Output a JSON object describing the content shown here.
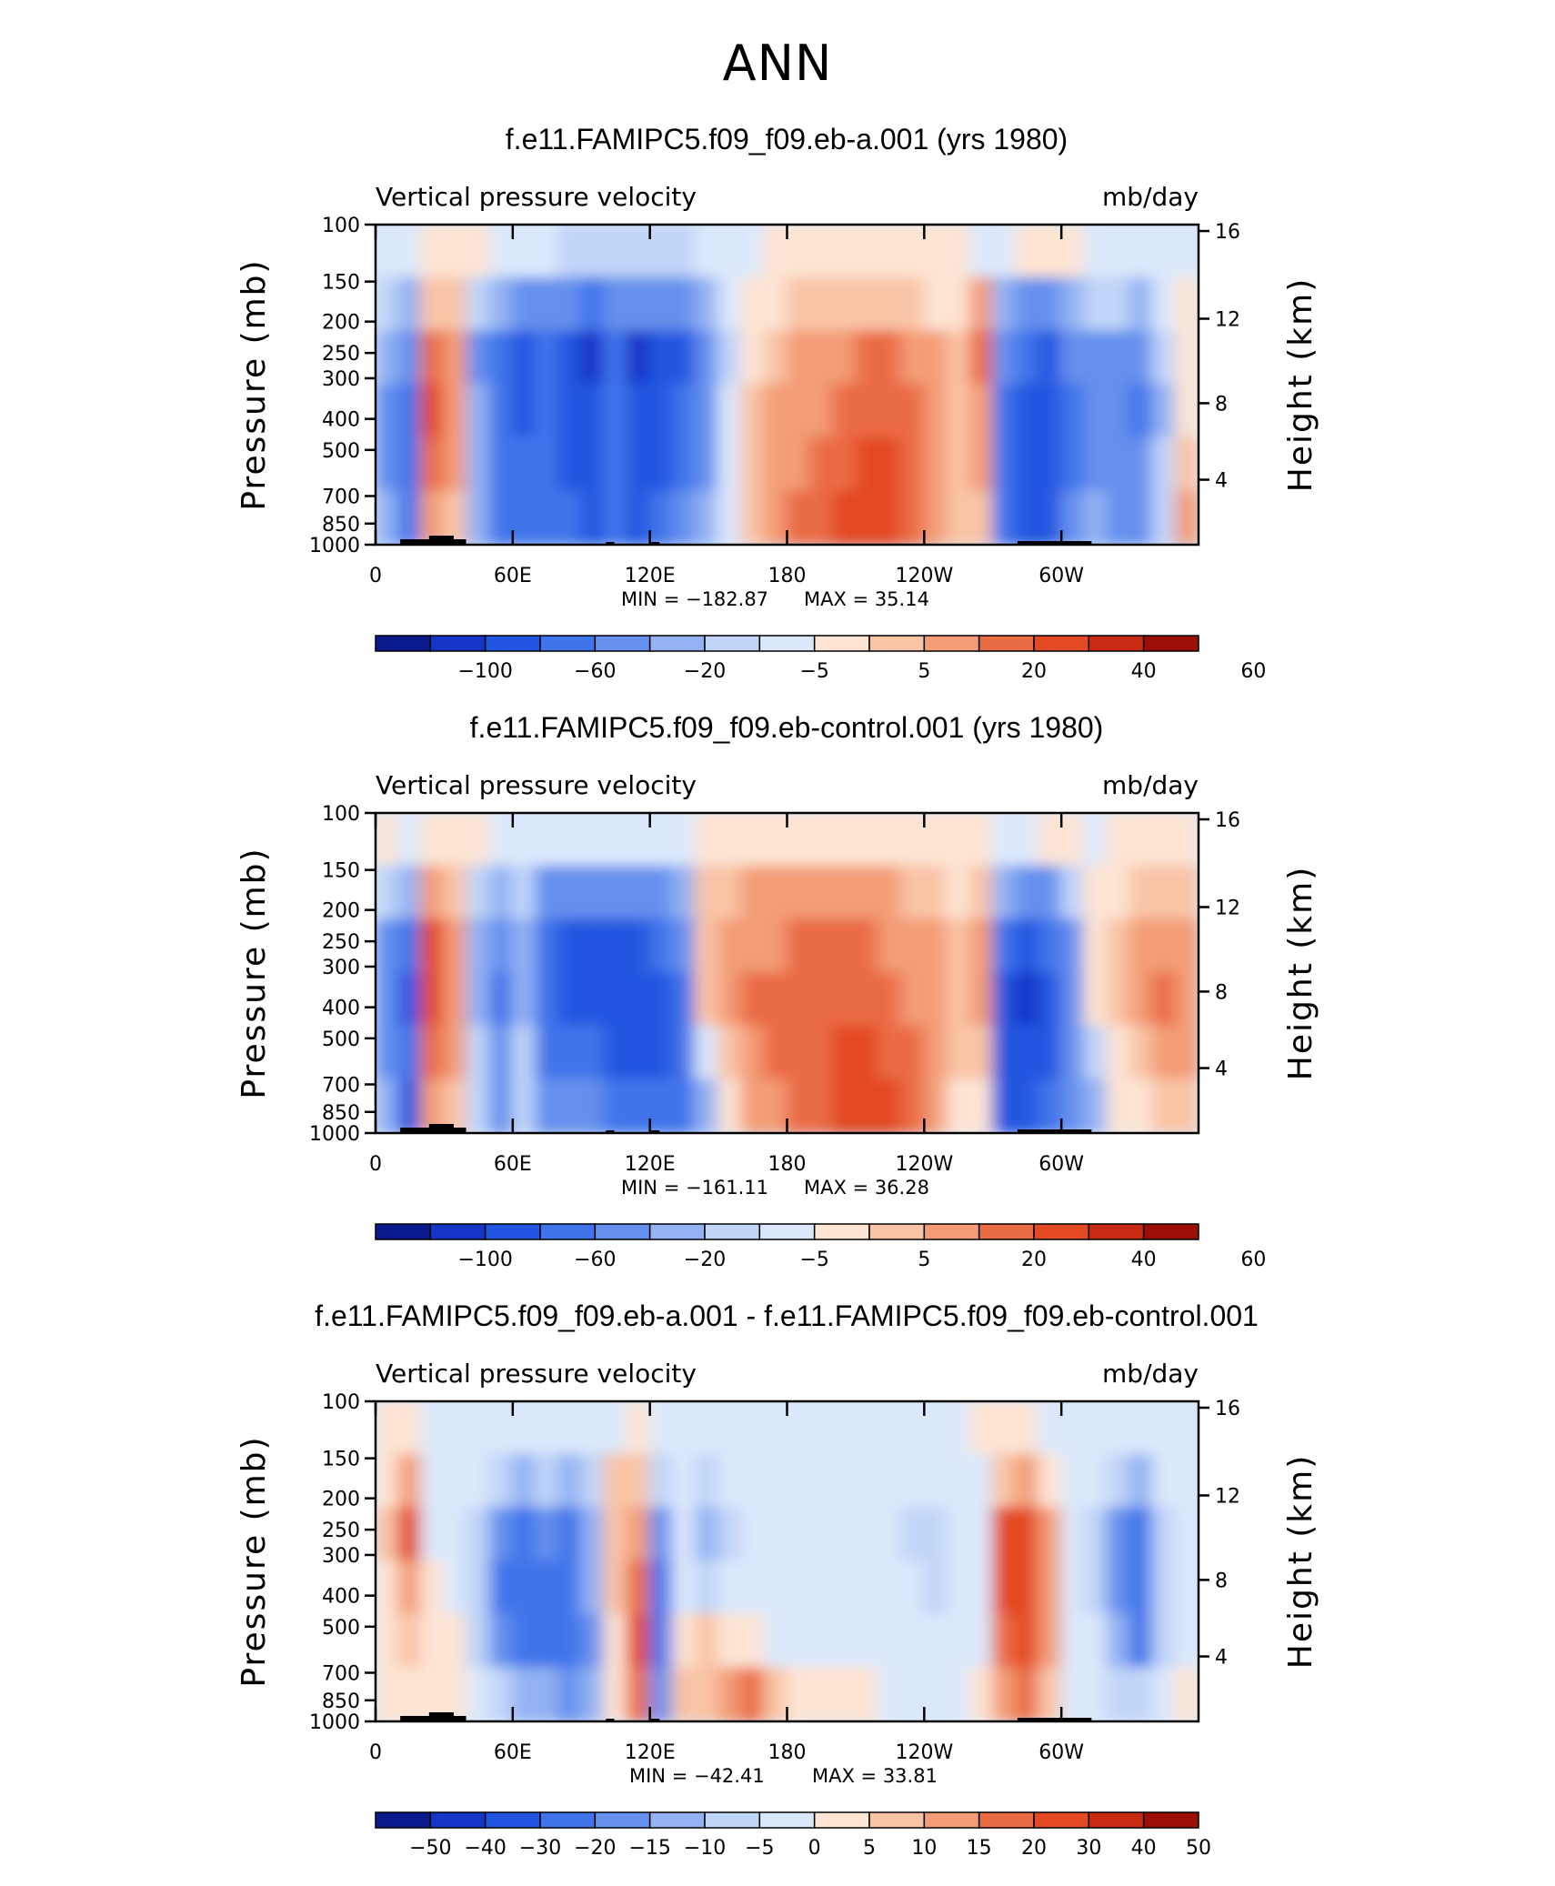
{
  "title": "ANN",
  "chart_data": [
    {
      "type": "heatmap",
      "title": "f.e11.FAMIPC5.f09_f09.eb-a.001 (yrs 1980)",
      "variable": "Vertical pressure velocity",
      "units": "mb/day",
      "ylabel": "Pressure (mb)",
      "ylabel_right": "Height (km)",
      "xticks": [
        "0",
        "60E",
        "120E",
        "180",
        "120W",
        "60W"
      ],
      "yticks": [
        "100",
        "150",
        "200",
        "250",
        "300",
        "400",
        "500",
        "700",
        "850",
        "1000"
      ],
      "yticks_right": [
        "16",
        "12",
        "8",
        "4"
      ],
      "min_label": "MIN =  −182.87",
      "max_label": "MAX =   35.14",
      "min": -182.87,
      "max": 35.14,
      "colorbar_labels": [
        "−100",
        "−60",
        "−20",
        "−5",
        "5",
        "20",
        "40",
        "60"
      ],
      "field": [
        [
          -2,
          -2,
          3,
          2,
          2,
          -4,
          -4,
          -4,
          -8,
          -6,
          -10,
          -10,
          -8,
          -8,
          -4,
          -2,
          -1,
          1,
          2,
          2,
          2,
          2,
          2,
          2,
          2,
          2,
          -1,
          -1,
          1,
          2,
          2,
          -1,
          -1,
          -1,
          -2,
          -1
        ],
        [
          -8,
          -15,
          8,
          6,
          -10,
          -20,
          -35,
          -30,
          -40,
          -45,
          -30,
          -40,
          -35,
          -30,
          -15,
          -3,
          2,
          4,
          6,
          8,
          8,
          8,
          8,
          6,
          4,
          3,
          10,
          -15,
          -25,
          -30,
          -15,
          -10,
          -10,
          -20,
          -5,
          2
        ],
        [
          -20,
          -40,
          25,
          15,
          -25,
          -60,
          -70,
          -60,
          -75,
          -85,
          -60,
          -85,
          -80,
          -65,
          -30,
          -6,
          4,
          8,
          12,
          15,
          18,
          20,
          20,
          15,
          10,
          6,
          20,
          -40,
          -60,
          -70,
          -40,
          -25,
          -30,
          -40,
          -10,
          3
        ],
        [
          -30,
          -60,
          30,
          18,
          -20,
          -55,
          -65,
          -55,
          -70,
          -80,
          -60,
          -80,
          -75,
          -60,
          -28,
          -5,
          5,
          10,
          14,
          18,
          22,
          25,
          25,
          20,
          14,
          6,
          15,
          -50,
          -70,
          -80,
          -50,
          -30,
          -40,
          -50,
          -15,
          4
        ],
        [
          -25,
          -50,
          25,
          12,
          -15,
          -50,
          -60,
          -50,
          -65,
          -75,
          -55,
          -75,
          -70,
          -50,
          -22,
          -4,
          6,
          12,
          16,
          22,
          28,
          32,
          30,
          24,
          16,
          6,
          10,
          -55,
          -70,
          -75,
          -45,
          -25,
          -35,
          -40,
          -10,
          6
        ],
        [
          -15,
          -60,
          15,
          5,
          -15,
          -45,
          -55,
          -45,
          -55,
          -65,
          -50,
          -70,
          -60,
          -40,
          -15,
          -2,
          6,
          14,
          20,
          26,
          32,
          35,
          34,
          28,
          18,
          6,
          5,
          -60,
          -70,
          -65,
          -40,
          -20,
          -30,
          -30,
          -8,
          10
        ]
      ]
    },
    {
      "type": "heatmap",
      "title": "f.e11.FAMIPC5.f09_f09.eb-control.001 (yrs 1980)",
      "variable": "Vertical pressure velocity",
      "units": "mb/day",
      "ylabel": "Pressure (mb)",
      "ylabel_right": "Height (km)",
      "xticks": [
        "0",
        "60E",
        "120E",
        "180",
        "120W",
        "60W"
      ],
      "yticks": [
        "100",
        "150",
        "200",
        "250",
        "300",
        "400",
        "500",
        "700",
        "850",
        "1000"
      ],
      "yticks_right": [
        "16",
        "12",
        "8",
        "4"
      ],
      "min_label": "MIN =  −161.11",
      "max_label": "MAX =   36.28",
      "min": -161.11,
      "max": 36.28,
      "colorbar_labels": [
        "−100",
        "−60",
        "−20",
        "−5",
        "5",
        "20",
        "40",
        "60"
      ],
      "field": [
        [
          2,
          -2,
          2,
          2,
          1,
          -2,
          -2,
          -4,
          -4,
          -4,
          -4,
          -2,
          -2,
          -1,
          2,
          2,
          2,
          2,
          2,
          3,
          3,
          3,
          2,
          2,
          2,
          2,
          2,
          -1,
          -1,
          1,
          2,
          -1,
          1,
          2,
          2,
          2
        ],
        [
          -10,
          -20,
          10,
          8,
          -8,
          -15,
          -10,
          -25,
          -35,
          -30,
          -35,
          -30,
          -25,
          -15,
          6,
          8,
          10,
          10,
          12,
          14,
          14,
          12,
          10,
          8,
          6,
          4,
          8,
          -20,
          -30,
          -25,
          -10,
          2,
          4,
          6,
          8,
          6
        ],
        [
          -25,
          -50,
          30,
          15,
          -15,
          -40,
          -20,
          -55,
          -75,
          -70,
          -80,
          -70,
          -60,
          -30,
          8,
          12,
          18,
          18,
          20,
          22,
          22,
          20,
          18,
          14,
          10,
          6,
          15,
          -55,
          -70,
          -60,
          -25,
          3,
          8,
          10,
          15,
          10
        ],
        [
          -35,
          -70,
          35,
          18,
          -15,
          -45,
          -15,
          -50,
          -70,
          -65,
          -80,
          -75,
          -70,
          -45,
          6,
          12,
          20,
          20,
          22,
          24,
          26,
          28,
          24,
          18,
          12,
          6,
          12,
          -70,
          -85,
          -70,
          -35,
          4,
          8,
          12,
          20,
          12
        ],
        [
          -30,
          -60,
          25,
          10,
          -10,
          -40,
          -10,
          -45,
          -60,
          -55,
          -70,
          -70,
          -70,
          -55,
          -5,
          8,
          16,
          20,
          22,
          26,
          30,
          32,
          28,
          20,
          12,
          5,
          8,
          -70,
          -80,
          -65,
          -40,
          -10,
          4,
          8,
          15,
          10
        ],
        [
          -20,
          -70,
          15,
          5,
          -8,
          -30,
          -8,
          -30,
          -40,
          -40,
          -50,
          -55,
          -55,
          -45,
          -15,
          4,
          10,
          16,
          22,
          28,
          32,
          34,
          30,
          22,
          14,
          4,
          4,
          -65,
          -70,
          -60,
          -35,
          -15,
          2,
          4,
          8,
          6
        ]
      ]
    },
    {
      "type": "heatmap",
      "title": "f.e11.FAMIPC5.f09_f09.eb-a.001 - f.e11.FAMIPC5.f09_f09.eb-control.001",
      "variable": "Vertical pressure velocity",
      "units": "mb/day",
      "ylabel": "Pressure (mb)",
      "ylabel_right": "Height (km)",
      "xticks": [
        "0",
        "60E",
        "120E",
        "180",
        "120W",
        "60W"
      ],
      "yticks": [
        "100",
        "150",
        "200",
        "250",
        "300",
        "400",
        "500",
        "700",
        "850",
        "1000"
      ],
      "yticks_right": [
        "16",
        "12",
        "8",
        "4"
      ],
      "min_label": "MIN =  −42.41",
      "max_label": "MAX =   33.81",
      "min": -42.41,
      "max": 33.81,
      "colorbar_labels": [
        "−50",
        "−40",
        "−30",
        "−20",
        "−15",
        "−10",
        "−5",
        "0",
        "5",
        "10",
        "15",
        "20",
        "30",
        "40",
        "50"
      ],
      "field": [
        [
          2,
          4,
          -2,
          -2,
          -2,
          -1,
          -1,
          -1,
          -1,
          -2,
          -1,
          1,
          -1,
          -1,
          -1,
          -1,
          -1,
          -1,
          -1,
          -1,
          -1,
          -1,
          -1,
          -1,
          -1,
          -1,
          1,
          1,
          1,
          -1,
          -1,
          -1,
          -1,
          -1,
          -1,
          -1
        ],
        [
          4,
          12,
          -2,
          -2,
          -4,
          -10,
          -12,
          -10,
          -12,
          -8,
          6,
          8,
          -8,
          -4,
          -8,
          -4,
          -2,
          -3,
          -1,
          -1,
          -1,
          -1,
          -1,
          -2,
          -3,
          -3,
          -1,
          8,
          10,
          4,
          -2,
          -4,
          -10,
          -12,
          -4,
          -1
        ],
        [
          6,
          20,
          -1,
          -3,
          -8,
          -20,
          -25,
          -18,
          -22,
          -12,
          8,
          14,
          -18,
          -4,
          -12,
          -6,
          -3,
          -4,
          -2,
          -1,
          -1,
          -1,
          -3,
          -6,
          -7,
          -5,
          -1,
          20,
          25,
          10,
          -3,
          -8,
          -20,
          -28,
          -8,
          -1
        ],
        [
          4,
          14,
          2,
          -2,
          -10,
          -22,
          -28,
          -22,
          -25,
          -15,
          6,
          18,
          -22,
          -2,
          -8,
          -4,
          -2,
          -3,
          -1,
          -1,
          -1,
          -1,
          -2,
          -5,
          -6,
          -4,
          -1,
          22,
          28,
          12,
          -2,
          -6,
          -18,
          -30,
          -10,
          -1
        ],
        [
          2,
          8,
          3,
          2,
          -8,
          -18,
          -24,
          -25,
          -28,
          -18,
          4,
          20,
          -25,
          4,
          5,
          3,
          2,
          -1,
          -1,
          -1,
          -1,
          -1,
          -1,
          -2,
          -3,
          -2,
          -1,
          18,
          22,
          10,
          -1,
          -4,
          -12,
          -22,
          -8,
          -1
        ],
        [
          1,
          4,
          2,
          1,
          -4,
          -10,
          -15,
          -15,
          -18,
          -12,
          3,
          15,
          -20,
          5,
          6,
          12,
          15,
          5,
          2,
          1,
          1,
          1,
          -1,
          -1,
          -1,
          -1,
          1,
          14,
          15,
          8,
          -1,
          -2,
          -6,
          -10,
          -4,
          1
        ]
      ]
    }
  ]
}
